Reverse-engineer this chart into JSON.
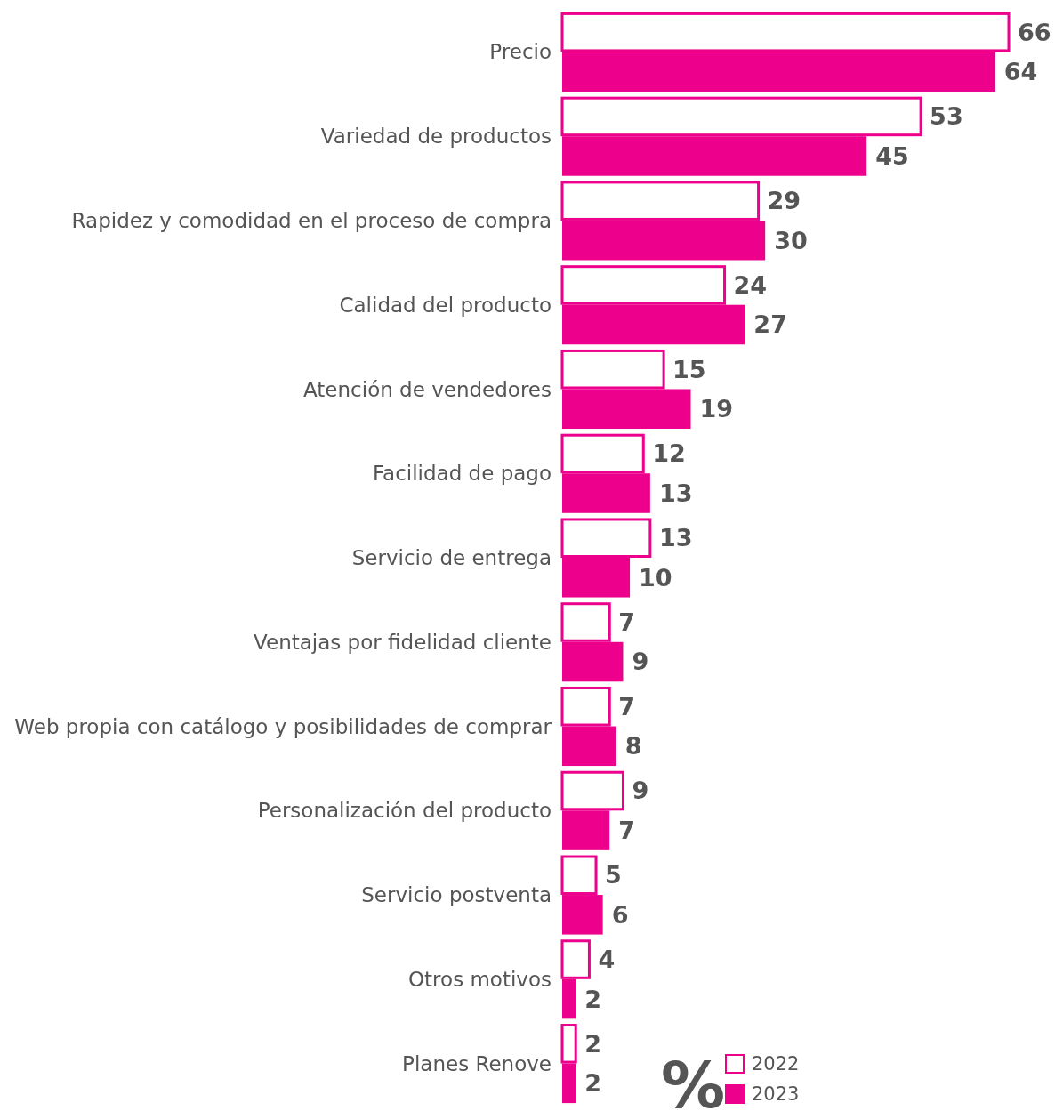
{
  "chart_data": {
    "type": "bar",
    "orientation": "horizontal",
    "categories": [
      "Precio",
      "Variedad de productos",
      "Rapidez y comodidad en el proceso de compra",
      "Calidad del producto",
      "Atención de vendedores",
      "Facilidad de pago",
      "Servicio de entrega",
      "Ventajas por fidelidad cliente",
      "Web propia con catálogo y posibilidades de comprar",
      "Personalización del producto",
      "Servicio postventa",
      "Otros motivos",
      "Planes Renove"
    ],
    "series": [
      {
        "name": "2022",
        "color": "#ec008c",
        "values": [
          66,
          53,
          29,
          24,
          15,
          12,
          13,
          7,
          7,
          9,
          5,
          4,
          2
        ]
      },
      {
        "name": "2023",
        "color": "#ec008c",
        "values": [
          64,
          45,
          30,
          27,
          19,
          13,
          10,
          9,
          8,
          7,
          6,
          2,
          2
        ]
      }
    ],
    "tick_labels": "y",
    "data_labels": true,
    "legend": "bottom",
    "legend_title": "%"
  }
}
